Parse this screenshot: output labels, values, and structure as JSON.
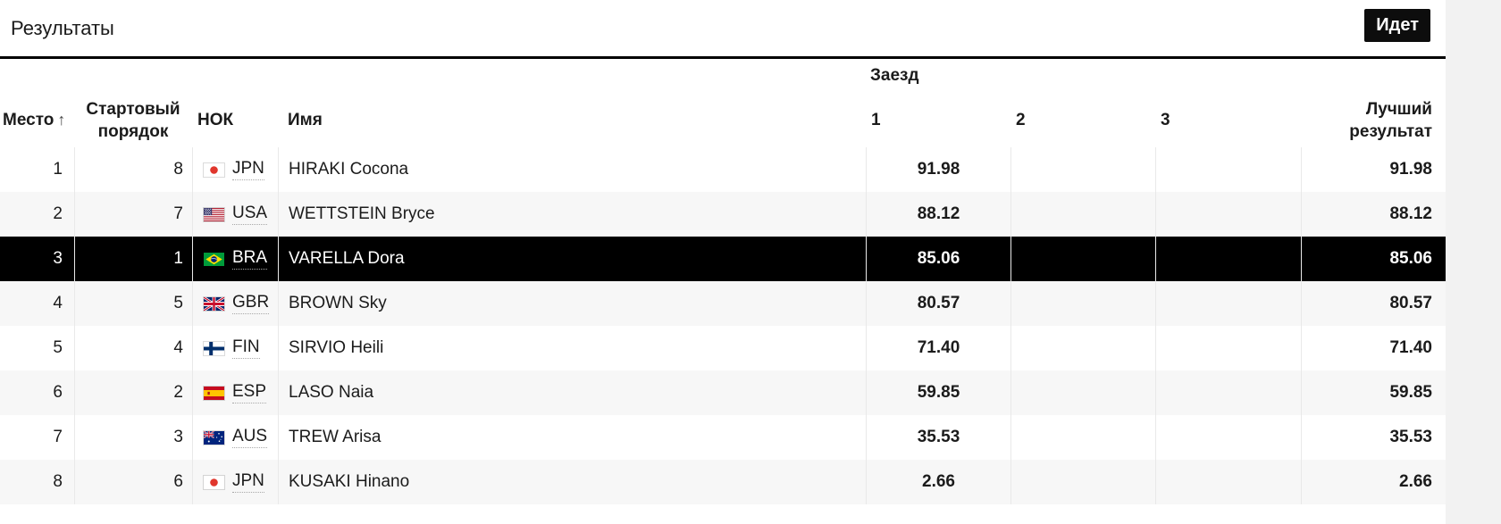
{
  "header": {
    "title": "Результаты",
    "status_badge": "Идет"
  },
  "table": {
    "columns": {
      "run_group": "Заезд",
      "place": "Место",
      "sort_arrow": "↑",
      "start_order": "Стартовый порядок",
      "noc": "НОК",
      "name": "Имя",
      "runs": [
        "1",
        "2",
        "3"
      ],
      "best": "Лучший результат"
    },
    "rows": [
      {
        "place": "1",
        "start_order": "8",
        "noc": "JPN",
        "flag": "jpn",
        "name": "HIRAKI Cocona",
        "runs": [
          "91.98",
          "",
          ""
        ],
        "best": "91.98",
        "highlight": false
      },
      {
        "place": "2",
        "start_order": "7",
        "noc": "USA",
        "flag": "usa",
        "name": "WETTSTEIN Bryce",
        "runs": [
          "88.12",
          "",
          ""
        ],
        "best": "88.12",
        "highlight": false
      },
      {
        "place": "3",
        "start_order": "1",
        "noc": "BRA",
        "flag": "bra",
        "name": "VARELLA Dora",
        "runs": [
          "85.06",
          "",
          ""
        ],
        "best": "85.06",
        "highlight": true
      },
      {
        "place": "4",
        "start_order": "5",
        "noc": "GBR",
        "flag": "gbr",
        "name": "BROWN Sky",
        "runs": [
          "80.57",
          "",
          ""
        ],
        "best": "80.57",
        "highlight": false
      },
      {
        "place": "5",
        "start_order": "4",
        "noc": "FIN",
        "flag": "fin",
        "name": "SIRVIO Heili",
        "runs": [
          "71.40",
          "",
          ""
        ],
        "best": "71.40",
        "highlight": false
      },
      {
        "place": "6",
        "start_order": "2",
        "noc": "ESP",
        "flag": "esp",
        "name": "LASO Naia",
        "runs": [
          "59.85",
          "",
          ""
        ],
        "best": "59.85",
        "highlight": false
      },
      {
        "place": "7",
        "start_order": "3",
        "noc": "AUS",
        "flag": "aus",
        "name": "TREW Arisa",
        "runs": [
          "35.53",
          "",
          ""
        ],
        "best": "35.53",
        "highlight": false
      },
      {
        "place": "8",
        "start_order": "6",
        "noc": "JPN",
        "flag": "jpn",
        "name": "KUSAKI Hinano",
        "runs": [
          "2.66",
          "",
          ""
        ],
        "best": "2.66",
        "highlight": false
      }
    ]
  },
  "colors": {
    "highlight_row_bg": "#000000",
    "highlight_row_text": "#ffffff",
    "row_alt_bg": "#f7f7f7",
    "badge_bg": "#0d0d0d",
    "badge_text": "#ffffff"
  }
}
